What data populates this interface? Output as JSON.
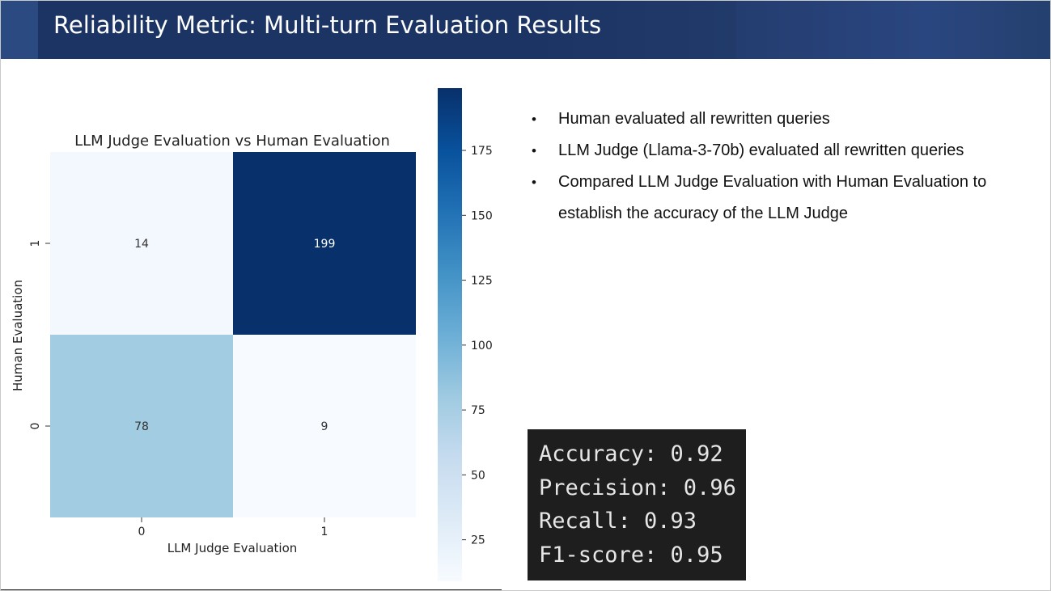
{
  "slide": {
    "title": "Reliability Metric: Multi-turn Evaluation Results",
    "bullets": [
      " Human evaluated all rewritten queries",
      "LLM Judge (Llama-3-70b) evaluated all rewritten queries",
      " Compared LLM Judge Evaluation with Human Evaluation to",
      "establish the accuracy of the LLM Judge"
    ],
    "bullet_marker": "•",
    "metrics": [
      "Accuracy: 0.92",
      "Precision: 0.96",
      "Recall: 0.93",
      "F1-score: 0.95"
    ],
    "colors": {
      "title_bar": "#1c3463",
      "metrics_bg": "#1e1e1e",
      "heat_low": "#f7fbff",
      "heat_high": "#08306b"
    }
  },
  "chart_data": {
    "type": "heatmap",
    "title": "LLM Judge Evaluation vs Human Evaluation",
    "xlabel": "LLM Judge Evaluation",
    "ylabel": "Human Evaluation",
    "x_categories": [
      "0",
      "1"
    ],
    "y_categories": [
      "1",
      "0"
    ],
    "values": [
      [
        14,
        199
      ],
      [
        78,
        9
      ]
    ],
    "colorbar": {
      "min": 9,
      "max": 199,
      "ticks": [
        25,
        50,
        75,
        100,
        125,
        150,
        175
      ]
    },
    "colormap": "Blues"
  }
}
